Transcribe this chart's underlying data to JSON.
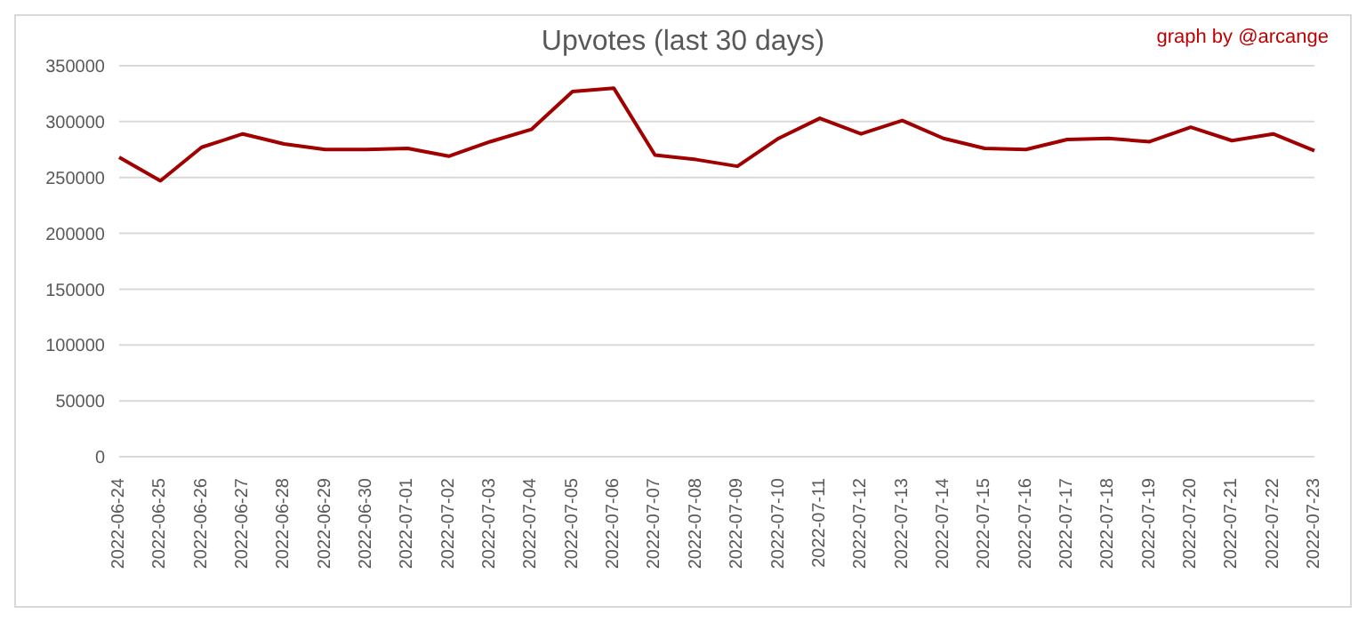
{
  "chart_data": {
    "type": "line",
    "title": "Upvotes (last 30 days)",
    "annotations": [
      "graph by @arcange"
    ],
    "categories": [
      "2022-06-24",
      "2022-06-25",
      "2022-06-26",
      "2022-06-27",
      "2022-06-28",
      "2022-06-29",
      "2022-06-30",
      "2022-07-01",
      "2022-07-02",
      "2022-07-03",
      "2022-07-04",
      "2022-07-05",
      "2022-07-06",
      "2022-07-07",
      "2022-07-08",
      "2022-07-09",
      "2022-07-10",
      "2022-07-11",
      "2022-07-12",
      "2022-07-13",
      "2022-07-14",
      "2022-07-15",
      "2022-07-16",
      "2022-07-17",
      "2022-07-18",
      "2022-07-19",
      "2022-07-20",
      "2022-07-21",
      "2022-07-22",
      "2022-07-23"
    ],
    "series": [
      {
        "color": "#a00000",
        "values": [
          268000,
          247000,
          277000,
          289000,
          280000,
          275000,
          275000,
          276000,
          269000,
          282000,
          293000,
          327000,
          330000,
          270000,
          266000,
          260000,
          285000,
          303000,
          289000,
          301000,
          285000,
          276000,
          275000,
          284000,
          285000,
          282000,
          295000,
          283000,
          289000,
          274000
        ]
      }
    ],
    "ylim": [
      0,
      350000
    ],
    "yticks": [
      0,
      50000,
      100000,
      150000,
      200000,
      250000,
      300000,
      350000
    ],
    "grid": "y",
    "legend": false,
    "marker": "none",
    "line_style": "solid"
  }
}
